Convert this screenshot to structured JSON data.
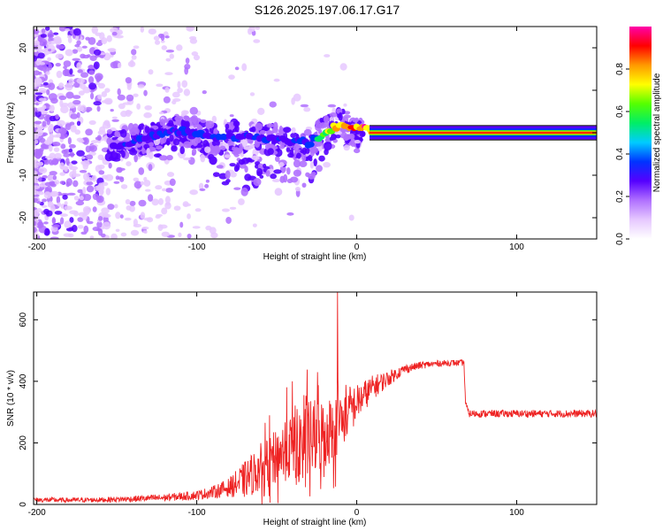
{
  "title": "S126.2025.197.06.17.G17",
  "colors": {
    "snr_line": "#ee2222",
    "signal_line": "#000000",
    "colormap": [
      "#ffffff",
      "#e6c8ff",
      "#b070ff",
      "#5500ff",
      "#0033ff",
      "#00ccff",
      "#00ee66",
      "#55ff00",
      "#ffff00",
      "#ff9900",
      "#ff0000",
      "#ff00aa"
    ]
  },
  "chart_data": [
    {
      "type": "heatmap",
      "xlabel": "Height of straight line (km)",
      "ylabel": "Frequency (Hz)",
      "xlim": [
        -202,
        150
      ],
      "ylim": [
        -25,
        25
      ],
      "xticks": [
        -200,
        -100,
        0,
        100
      ],
      "yticks": [
        -20,
        -10,
        0,
        10,
        20
      ],
      "colorbar": {
        "label": "Normalized spectral amplitude",
        "range": [
          0,
          1
        ],
        "ticks": [
          0.0,
          0.2,
          0.4,
          0.6,
          0.8
        ]
      },
      "ridge": {
        "x": [
          -150,
          -140,
          -130,
          -120,
          -110,
          -100,
          -90,
          -80,
          -70,
          -60,
          -50,
          -40,
          -30,
          -20,
          -15,
          -10,
          -5,
          0,
          5,
          10,
          50,
          100,
          150
        ],
        "y": [
          -3,
          -2,
          -1,
          0,
          0.5,
          0,
          -1,
          -1,
          -1,
          -1,
          -1.5,
          -2,
          -2.5,
          0,
          1,
          2,
          1,
          1,
          1,
          0,
          0,
          0,
          0
        ],
        "amplitude": [
          0.3,
          0.35,
          0.35,
          0.35,
          0.35,
          0.35,
          0.35,
          0.35,
          0.35,
          0.35,
          0.3,
          0.3,
          0.35,
          0.6,
          0.8,
          0.85,
          0.9,
          0.9,
          0.9,
          0.95,
          0.95,
          0.95,
          0.95
        ]
      }
    },
    {
      "type": "line",
      "xlabel": "Height of straight line (km)",
      "ylabel": "SNR (10 * v/v)",
      "xlim": [
        -202,
        150
      ],
      "ylim": [
        0,
        690
      ],
      "xticks": [
        -200,
        -100,
        0,
        100
      ],
      "yticks": [
        0,
        200,
        400,
        600
      ],
      "series": [
        {
          "x": [
            -202,
            -180,
            -160,
            -140,
            -120,
            -100,
            -90,
            -80,
            -70,
            -60,
            -50,
            -40,
            -30,
            -20,
            -10,
            0,
            10,
            20,
            30,
            40,
            50,
            60,
            67,
            68,
            70,
            80,
            100,
            120,
            150
          ],
          "y": [
            15,
            14,
            15,
            18,
            22,
            30,
            40,
            55,
            80,
            120,
            160,
            190,
            210,
            230,
            270,
            330,
            380,
            410,
            440,
            452,
            458,
            460,
            460,
            330,
            295,
            295,
            295,
            295,
            295
          ],
          "spread": [
            8,
            8,
            8,
            10,
            12,
            15,
            20,
            30,
            60,
            80,
            110,
            140,
            160,
            150,
            120,
            60,
            40,
            25,
            15,
            12,
            10,
            10,
            10,
            10,
            12,
            12,
            12,
            12,
            12
          ],
          "spike": {
            "x": -12,
            "y": 690
          }
        }
      ]
    }
  ]
}
